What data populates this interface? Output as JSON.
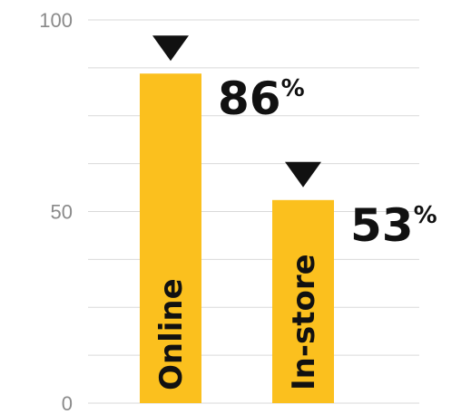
{
  "chart_data": {
    "type": "bar",
    "categories": [
      "Online",
      "In-store"
    ],
    "values": [
      86,
      53
    ],
    "value_labels": [
      "86",
      "53"
    ],
    "value_suffix": "%",
    "ylim": [
      0,
      100
    ],
    "y_ticks": [
      {
        "value": 0,
        "label": "0"
      },
      {
        "value": 50,
        "label": "50"
      },
      {
        "value": 100,
        "label": "100"
      }
    ],
    "grid_values": [
      0,
      12.5,
      25,
      37.5,
      50,
      62.5,
      75,
      87.5,
      100
    ],
    "grid": true,
    "bar_color": "#FBC01E",
    "marker_color": "#111111",
    "marker": "down-triangle-icon"
  }
}
